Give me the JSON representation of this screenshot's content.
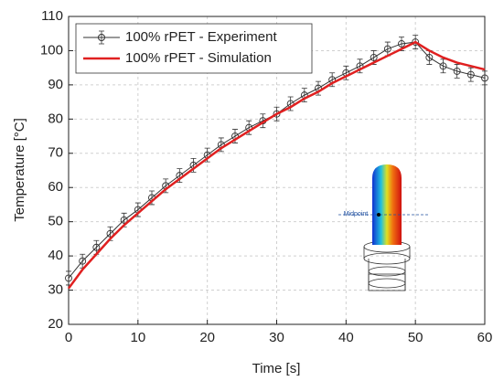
{
  "chart_data": {
    "type": "line",
    "xlabel": "Time [s]",
    "ylabel": "Temperature [°C]",
    "xlim": [
      0,
      60
    ],
    "xticks": [
      0,
      10,
      20,
      30,
      40,
      50,
      60
    ],
    "ylim": [
      20,
      110
    ],
    "yticks": [
      20,
      30,
      40,
      50,
      60,
      70,
      80,
      90,
      100,
      110
    ],
    "grid": true,
    "legend": "upper left",
    "annotation": "Midpoint",
    "series": [
      {
        "name": "100% rPET - Experiment",
        "color": "#333333",
        "marker": "circle",
        "x": [
          0,
          2,
          4,
          6,
          8,
          10,
          12,
          14,
          16,
          18,
          20,
          22,
          24,
          26,
          28,
          30,
          32,
          34,
          36,
          38,
          40,
          42,
          44,
          46,
          48,
          50,
          52,
          54,
          56,
          58,
          60
        ],
        "values": [
          33.5,
          38.5,
          42.5,
          46.5,
          50.5,
          53.5,
          57,
          60.5,
          63.5,
          66.5,
          69.5,
          72.5,
          75,
          77.5,
          79.5,
          81.5,
          84.5,
          87,
          89,
          91.5,
          93.5,
          95.5,
          98,
          100.5,
          102,
          102.5,
          98,
          95.5,
          94,
          93,
          92
        ],
        "errors": [
          2,
          2,
          2,
          2,
          2,
          2,
          2,
          2,
          2,
          2,
          2,
          2,
          2,
          2,
          2,
          2,
          2,
          2,
          2,
          2,
          2,
          2,
          2,
          2,
          2,
          2,
          2,
          2,
          2,
          2,
          2
        ]
      },
      {
        "name": "100% rPET - Simulation",
        "color": "#e02020",
        "x": [
          0,
          2,
          4,
          6,
          8,
          10,
          12,
          14,
          16,
          18,
          20,
          22,
          24,
          26,
          28,
          30,
          32,
          34,
          36,
          38,
          40,
          42,
          44,
          46,
          48,
          50,
          52,
          54,
          56,
          58,
          60
        ],
        "values": [
          30.5,
          36,
          40.5,
          45,
          49,
          52.5,
          56,
          59.5,
          62.5,
          65.5,
          68.5,
          71.5,
          74,
          76.5,
          79,
          81.5,
          83.5,
          86,
          88,
          90.5,
          92.5,
          94.5,
          96.5,
          98.5,
          100.5,
          102.5,
          100,
          98,
          96.5,
          95.5,
          94.5
        ]
      }
    ]
  }
}
